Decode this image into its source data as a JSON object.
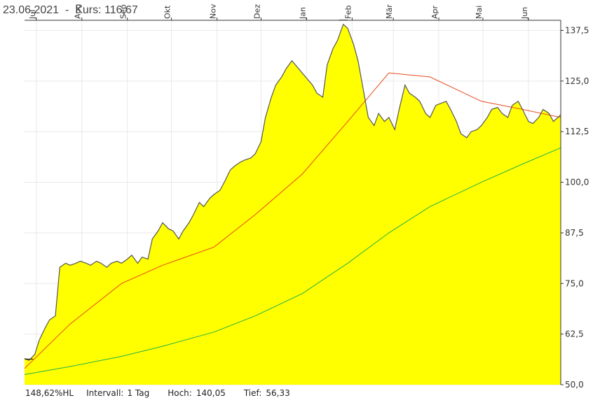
{
  "header": {
    "date": "23.06.2021",
    "separator": "-",
    "kurs_label": "Kurs:",
    "kurs_value": "116,67"
  },
  "footer": {
    "hl_value": "148,62%HL",
    "interval_label": "Intervall:",
    "interval_value": "1 Tag",
    "high_label": "Hoch:",
    "high_value": "140,05",
    "low_label": "Tief:",
    "low_value": "56,33"
  },
  "colors": {
    "area_fill": "#ffff00",
    "price_line": "#555555",
    "ma_short": "#e8491d",
    "ma_long": "#22b14c",
    "grid": "#e9e9e9",
    "axis": "#333333"
  },
  "chart_data": {
    "type": "area",
    "title": "",
    "xlabel": "",
    "ylabel": "",
    "x_ticks": [
      "Jul",
      "Aug",
      "Sep",
      "Okt",
      "Nov",
      "Dez",
      "Jan",
      "Feb",
      "Mär",
      "Apr",
      "Mai",
      "Jun"
    ],
    "y_ticks": [
      "50,0",
      "62,5",
      "75,0",
      "87,5",
      "100,0",
      "112,5",
      "125,0",
      "137,5"
    ],
    "ylim": [
      50,
      140
    ],
    "grid": true,
    "y_axis_side": "right",
    "x_axis_side": "top",
    "series": [
      {
        "kind": "price",
        "x": [
          "2020-06-23",
          "2020-06-26",
          "2020-06-30",
          "2020-07-03",
          "2020-07-07",
          "2020-07-10",
          "2020-07-14",
          "2020-07-17",
          "2020-07-21",
          "2020-07-24",
          "2020-07-28",
          "2020-07-31",
          "2020-08-04",
          "2020-08-07",
          "2020-08-11",
          "2020-08-14",
          "2020-08-18",
          "2020-08-21",
          "2020-08-25",
          "2020-08-28",
          "2020-09-01",
          "2020-09-04",
          "2020-09-08",
          "2020-09-11",
          "2020-09-15",
          "2020-09-18",
          "2020-09-22",
          "2020-09-25",
          "2020-09-29",
          "2020-10-02",
          "2020-10-06",
          "2020-10-09",
          "2020-10-13",
          "2020-10-16",
          "2020-10-20",
          "2020-10-23",
          "2020-10-27",
          "2020-10-30",
          "2020-11-03",
          "2020-11-06",
          "2020-11-10",
          "2020-11-13",
          "2020-11-17",
          "2020-11-20",
          "2020-11-24",
          "2020-11-27",
          "2020-12-01",
          "2020-12-04",
          "2020-12-08",
          "2020-12-11",
          "2020-12-15",
          "2020-12-18",
          "2020-12-22",
          "2020-12-29",
          "2021-01-05",
          "2021-01-08",
          "2021-01-12",
          "2021-01-15",
          "2021-01-19",
          "2021-01-22",
          "2021-01-26",
          "2021-01-29",
          "2021-02-02",
          "2021-02-05",
          "2021-02-09",
          "2021-02-12",
          "2021-02-16",
          "2021-02-19",
          "2021-02-23",
          "2021-02-26",
          "2021-03-02",
          "2021-03-05",
          "2021-03-09",
          "2021-03-12",
          "2021-03-16",
          "2021-03-19",
          "2021-03-23",
          "2021-03-26",
          "2021-03-30",
          "2021-04-06",
          "2021-04-09",
          "2021-04-13",
          "2021-04-16",
          "2021-04-20",
          "2021-04-23",
          "2021-04-27",
          "2021-04-30",
          "2021-05-04",
          "2021-05-07",
          "2021-05-11",
          "2021-05-14",
          "2021-05-18",
          "2021-05-21",
          "2021-05-25",
          "2021-05-28",
          "2021-06-01",
          "2021-06-04",
          "2021-06-08",
          "2021-06-11",
          "2021-06-15",
          "2021-06-18",
          "2021-06-23"
        ],
        "values": [
          56.5,
          56.0,
          57.5,
          61.0,
          64.0,
          66.0,
          67.0,
          79.0,
          80.0,
          79.5,
          80.0,
          80.5,
          80.0,
          79.5,
          80.5,
          80.0,
          79.0,
          80.0,
          80.5,
          80.0,
          81.0,
          82.0,
          80.0,
          81.5,
          81.0,
          86.0,
          88.0,
          90.0,
          88.5,
          88.0,
          86.0,
          88.0,
          90.0,
          92.0,
          95.0,
          94.0,
          96.0,
          97.0,
          98.0,
          100.0,
          103.0,
          104.0,
          105.0,
          105.5,
          106.0,
          107.0,
          110.0,
          116.0,
          121.0,
          124.0,
          126.0,
          128.0,
          130.0,
          127.0,
          124.0,
          122.0,
          121.0,
          129.0,
          133.0,
          135.0,
          139.0,
          138.0,
          134.0,
          130.0,
          122.0,
          116.0,
          114.0,
          117.0,
          115.0,
          116.0,
          113.0,
          118.0,
          124.0,
          122.0,
          121.0,
          120.0,
          117.0,
          116.0,
          119.0,
          120.0,
          118.0,
          115.0,
          112.0,
          111.0,
          112.5,
          113.0,
          114.0,
          116.0,
          118.0,
          118.5,
          117.0,
          116.0,
          119.0,
          120.0,
          118.0,
          115.0,
          114.5,
          116.0,
          118.0,
          117.0,
          115.0,
          116.67
        ]
      },
      {
        "kind": "ma_short",
        "x": [
          "2020-06-23",
          "2020-07-24",
          "2020-08-28",
          "2020-09-25",
          "2020-10-30",
          "2020-11-27",
          "2020-12-29",
          "2021-01-29",
          "2021-02-26",
          "2021-03-26",
          "2021-04-30",
          "2021-05-28",
          "2021-06-23"
        ],
        "values": [
          54.0,
          65.0,
          75.0,
          79.5,
          84.0,
          92.0,
          102.0,
          115.0,
          127.0,
          126.0,
          120.0,
          118.0,
          116.0
        ]
      },
      {
        "kind": "ma_long",
        "x": [
          "2020-06-23",
          "2020-07-24",
          "2020-08-28",
          "2020-09-25",
          "2020-10-30",
          "2020-11-27",
          "2020-12-29",
          "2021-01-29",
          "2021-02-26",
          "2021-03-26",
          "2021-04-30",
          "2021-05-28",
          "2021-06-23"
        ],
        "values": [
          52.5,
          54.5,
          57.0,
          59.5,
          63.0,
          67.0,
          72.5,
          80.0,
          87.5,
          94.0,
          100.0,
          104.5,
          108.5
        ]
      }
    ]
  }
}
